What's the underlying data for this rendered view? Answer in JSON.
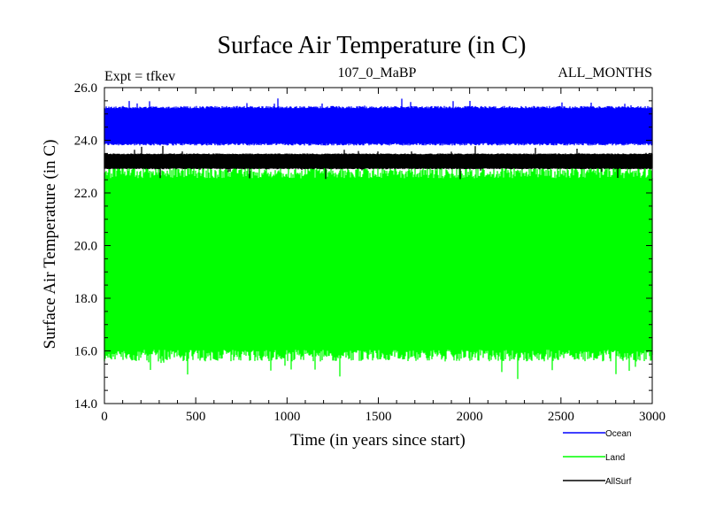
{
  "chart_data": {
    "type": "line",
    "title": "Surface Air Temperature (in C)",
    "subtitle_left": "Expt = tfkev",
    "subtitle_center": "107_0_MaBP",
    "subtitle_right": "ALL_MONTHS",
    "xlabel": "Time (in years since start)",
    "ylabel": "Surface Air Temperature (in C)",
    "xlim": [
      0,
      3000
    ],
    "ylim": [
      14.0,
      26.0
    ],
    "x_ticks": [
      0,
      500,
      1000,
      1500,
      2000,
      2500,
      3000
    ],
    "x_tick_labels": [
      "0",
      "500",
      "1000",
      "1500",
      "2000",
      "2500",
      "3000"
    ],
    "y_ticks": [
      14.0,
      16.0,
      18.0,
      20.0,
      22.0,
      24.0,
      26.0
    ],
    "y_tick_labels": [
      "14.0",
      "16.0",
      "18.0",
      "20.0",
      "22.0",
      "24.0",
      "26.0"
    ],
    "grid": false,
    "legend_placement": "bottom-right",
    "series": [
      {
        "name": "Ocean",
        "color": "#0000ff",
        "low": 23.8,
        "high": 25.3,
        "peak": 25.6
      },
      {
        "name": "Land",
        "color": "#00ff00",
        "low": 15.6,
        "high": 23.0,
        "dip": 14.9,
        "peak": 23.6
      },
      {
        "name": "AllSurf",
        "color": "#000000",
        "low": 22.9,
        "high": 23.5,
        "dip": 22.5,
        "peak": 23.8
      }
    ]
  }
}
